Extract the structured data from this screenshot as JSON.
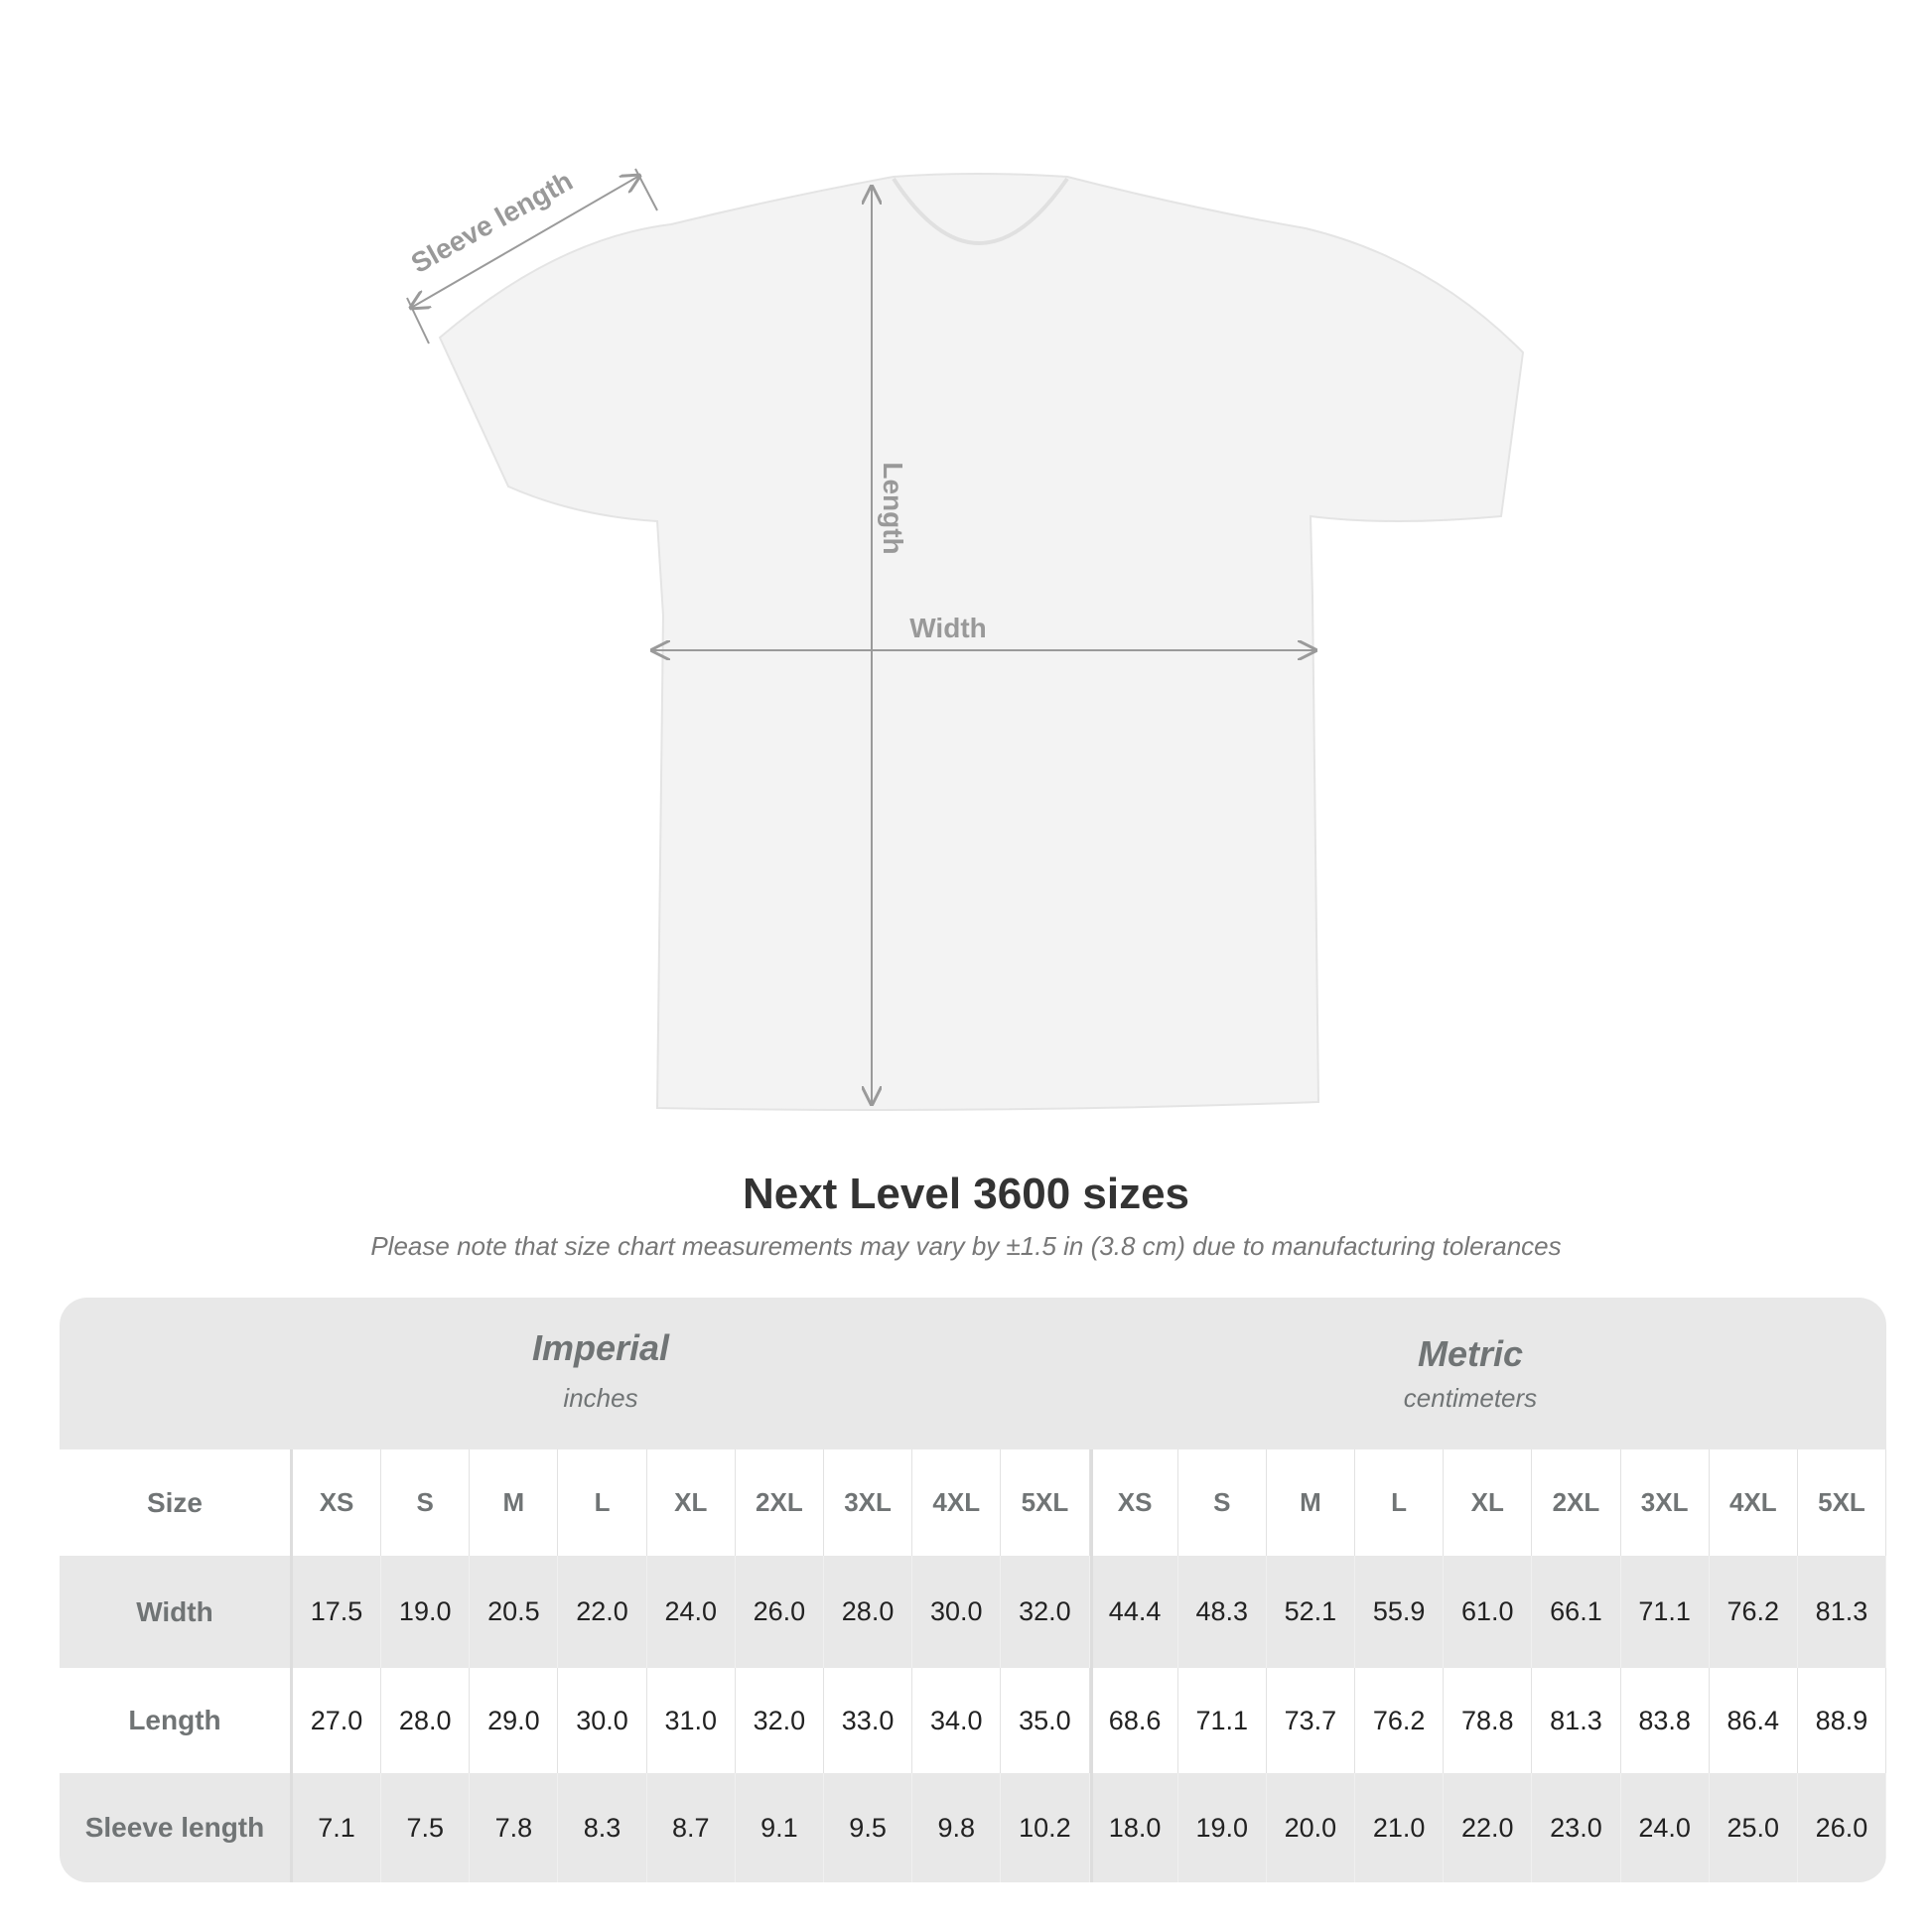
{
  "diagram": {
    "labels": {
      "sleeve": "Sleeve length",
      "length": "Length",
      "width": "Width"
    },
    "colors": {
      "shirt": "#f3f3f3",
      "arrow": "#9a9a9a",
      "label": "#999999"
    }
  },
  "title": "Next Level 3600 sizes",
  "note": "Please note that size chart measurements may vary by ±1.5 in (3.8 cm) due to manufacturing tolerances",
  "table": {
    "imperial": {
      "title": "Imperial",
      "unit": "inches"
    },
    "metric": {
      "title": "Metric",
      "unit": "centimeters"
    },
    "rows": [
      {
        "label": "Size",
        "imperial": [
          "XS",
          "S",
          "M",
          "L",
          "XL",
          "2XL",
          "3XL",
          "4XL",
          "5XL"
        ],
        "metric": [
          "XS",
          "S",
          "M",
          "L",
          "XL",
          "2XL",
          "3XL",
          "4XL",
          "5XL"
        ]
      },
      {
        "label": "Width",
        "imperial": [
          "17.5",
          "19.0",
          "20.5",
          "22.0",
          "24.0",
          "26.0",
          "28.0",
          "30.0",
          "32.0"
        ],
        "metric": [
          "44.4",
          "48.3",
          "52.1",
          "55.9",
          "61.0",
          "66.1",
          "71.1",
          "76.2",
          "81.3"
        ]
      },
      {
        "label": "Length",
        "imperial": [
          "27.0",
          "28.0",
          "29.0",
          "30.0",
          "31.0",
          "32.0",
          "33.0",
          "34.0",
          "35.0"
        ],
        "metric": [
          "68.6",
          "71.1",
          "73.7",
          "76.2",
          "78.8",
          "81.3",
          "83.8",
          "86.4",
          "88.9"
        ]
      },
      {
        "label": "Sleeve length",
        "imperial": [
          "7.1",
          "7.5",
          "7.8",
          "8.3",
          "8.7",
          "9.1",
          "9.5",
          "9.8",
          "10.2"
        ],
        "metric": [
          "18.0",
          "19.0",
          "20.0",
          "21.0",
          "22.0",
          "23.0",
          "24.0",
          "25.0",
          "26.0"
        ]
      }
    ]
  }
}
